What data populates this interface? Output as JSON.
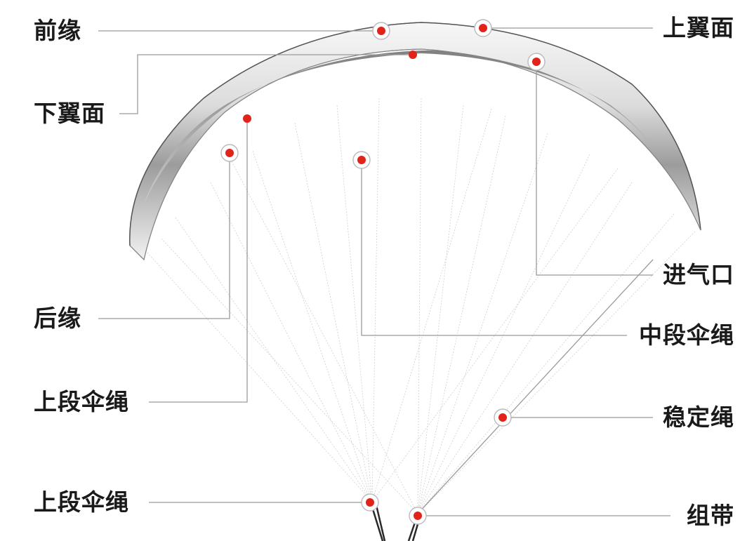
{
  "labels": {
    "leading_edge": "前缘",
    "upper_surface": "上翼面",
    "lower_surface": "下翼面",
    "air_intake": "进气口",
    "trailing_edge": "后缘",
    "middle_lines": "中段伞绳",
    "upper_lines": "上段伞绳",
    "stabilizer_line": "稳定绳",
    "lower_lines": "上段伞绳",
    "riser": "组带"
  },
  "colors": {
    "marker": "#e2231a",
    "leader_line": "#9a9a9a",
    "text": "#1a1a1a"
  }
}
